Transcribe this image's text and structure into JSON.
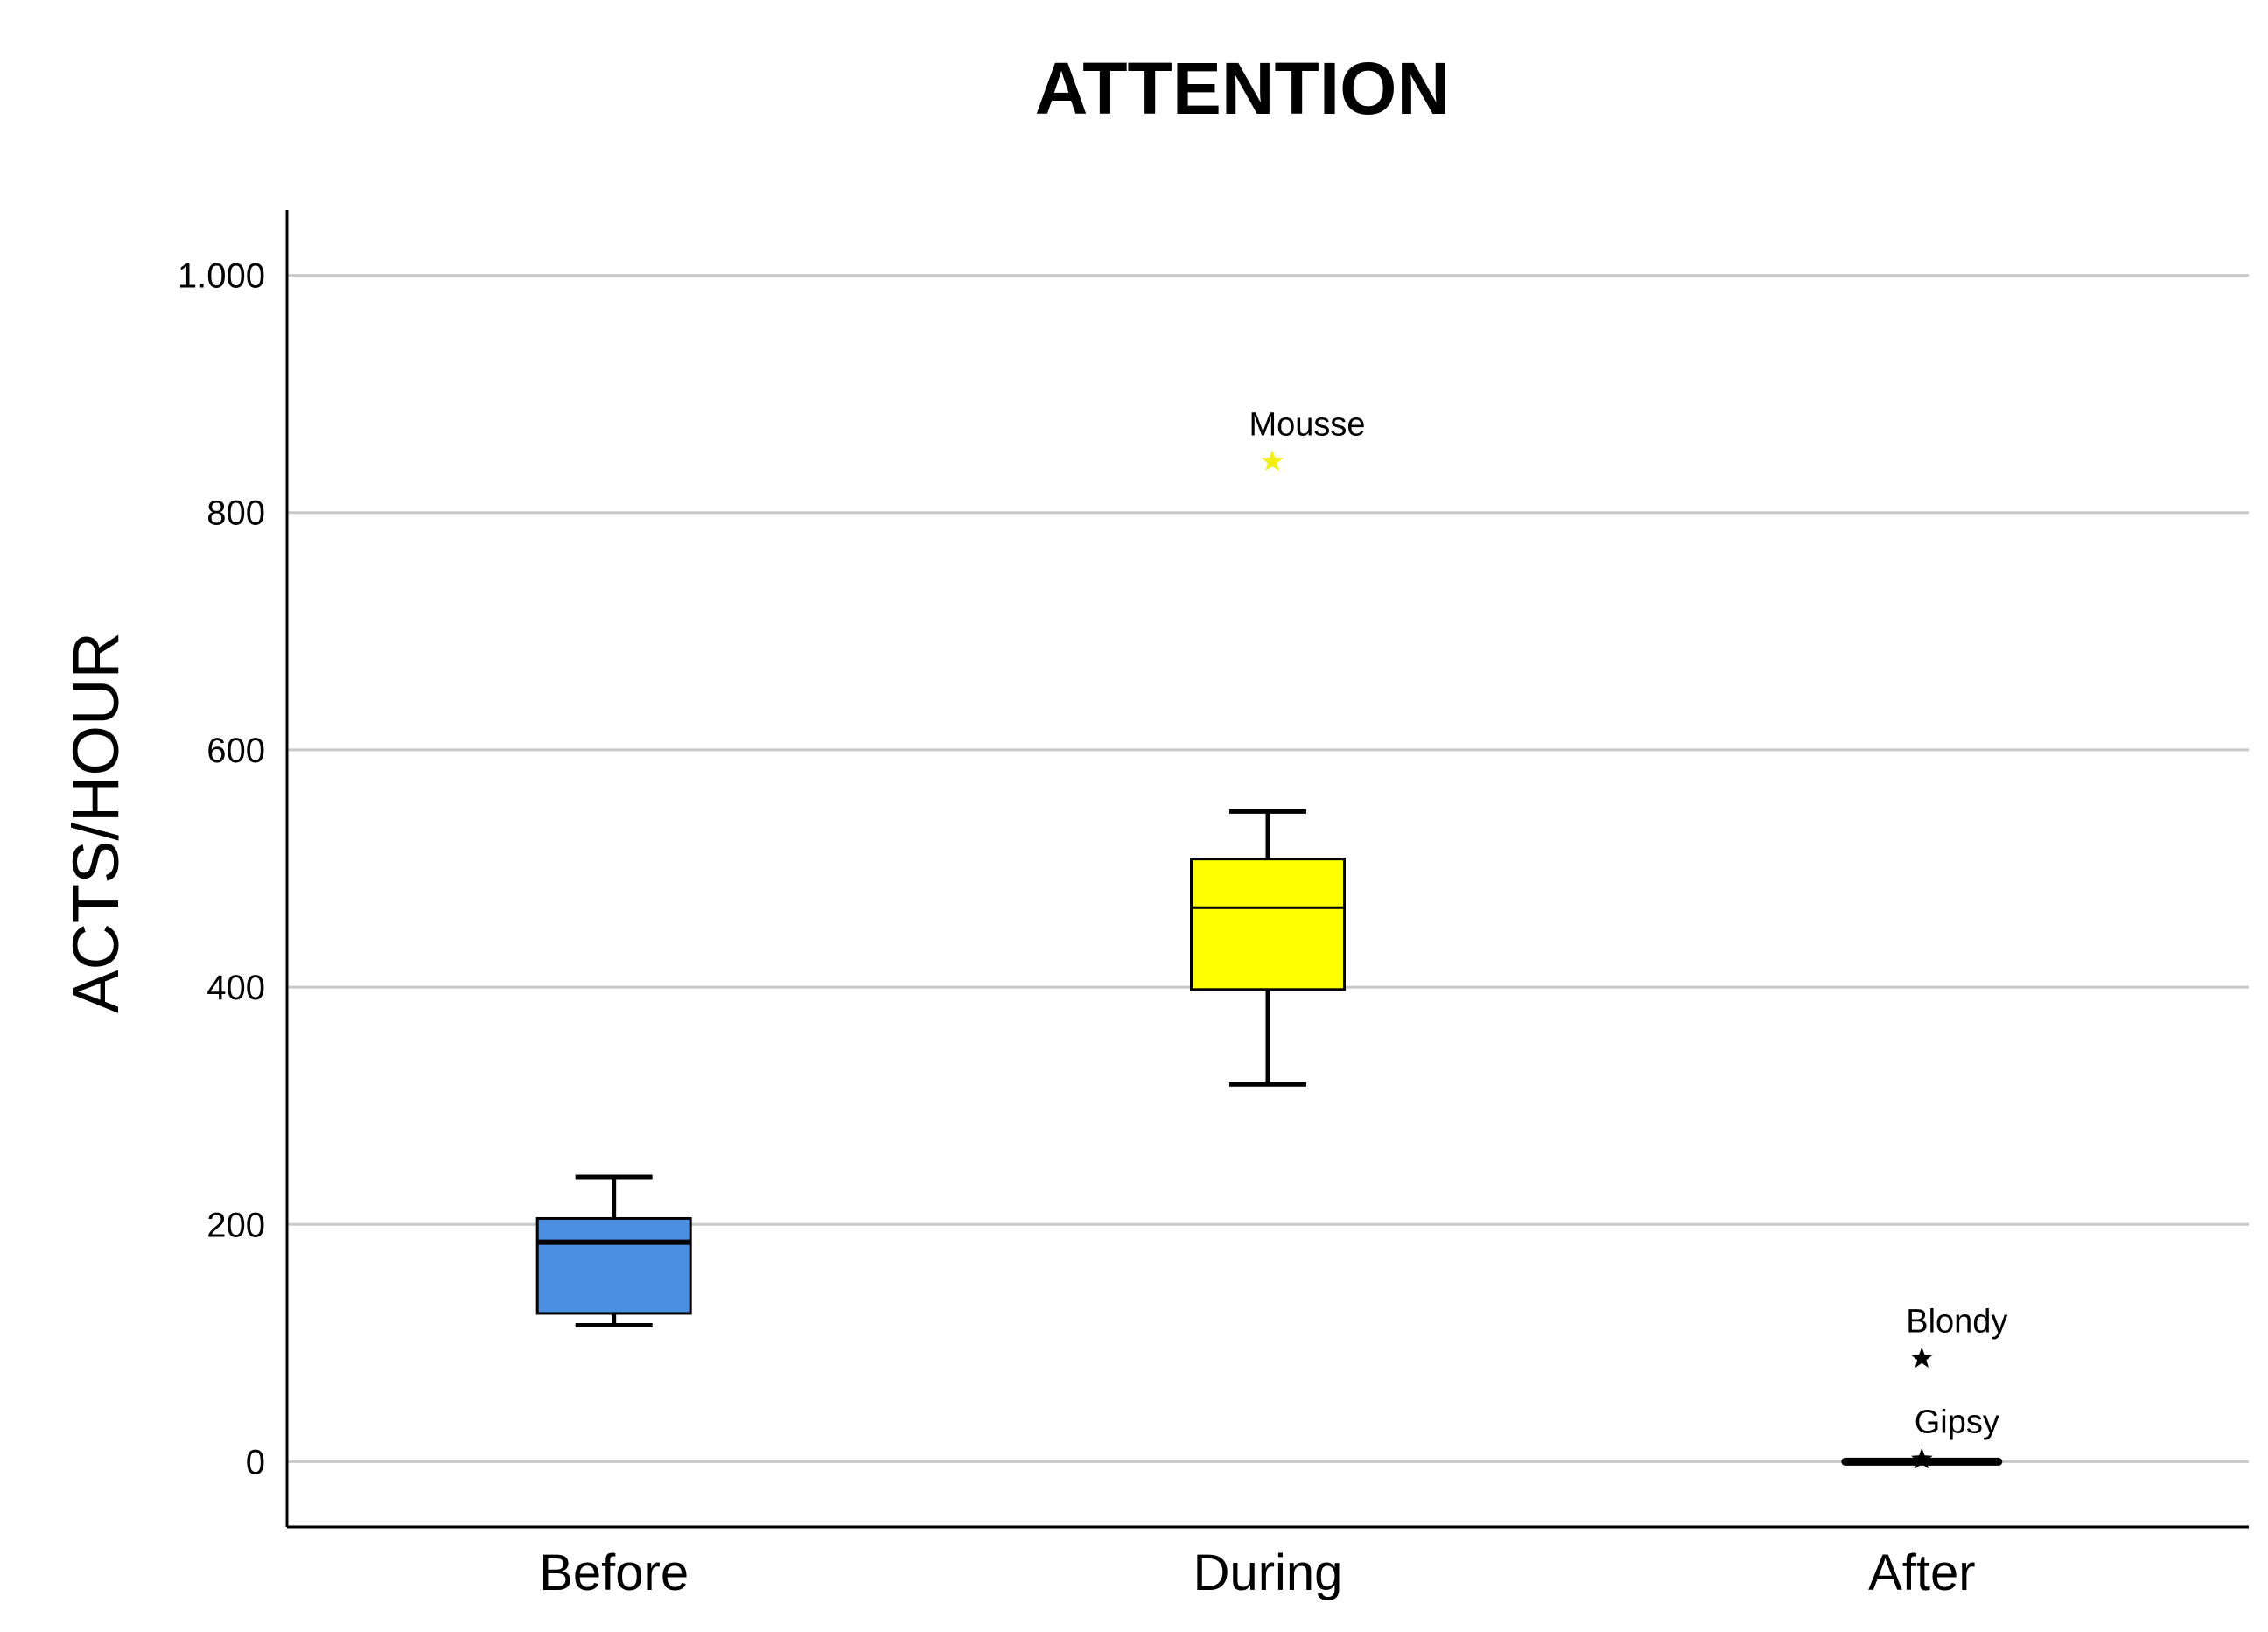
{
  "chart_data": {
    "type": "boxplot",
    "title": "ATTENTION",
    "ylabel": "ACTS/HOUR",
    "xlabel": "",
    "ylim": [
      -55,
      1055
    ],
    "yticks": [
      0,
      200,
      400,
      600,
      800,
      1000
    ],
    "ytick_labels": [
      "0",
      "200",
      "400",
      "600",
      "800",
      "1.000"
    ],
    "grid": true,
    "categories": [
      "Before",
      "During",
      "After"
    ],
    "boxes": [
      {
        "category": "Before",
        "whisker_low": 115,
        "q1": 125,
        "median": 185,
        "q3": 205,
        "whisker_high": 240,
        "color": "#4a90e2"
      },
      {
        "category": "During",
        "whisker_low": 318,
        "q1": 398,
        "median": 467,
        "q3": 508,
        "whisker_high": 548,
        "color": "#ffff00"
      },
      {
        "category": "After",
        "whisker_low": 0,
        "q1": 0,
        "median": 0,
        "q3": 0,
        "whisker_high": 0,
        "color": "#000000"
      }
    ],
    "outliers": [
      {
        "category": "During",
        "value": 843,
        "label": "Mousse",
        "marker": "star",
        "color": "#f2f200"
      },
      {
        "category": "After",
        "value": 87,
        "label": "Blondy",
        "marker": "star",
        "color": "#000000"
      },
      {
        "category": "After",
        "value": 2,
        "label": "Gipsy",
        "marker": "star",
        "color": "#000000"
      }
    ]
  }
}
